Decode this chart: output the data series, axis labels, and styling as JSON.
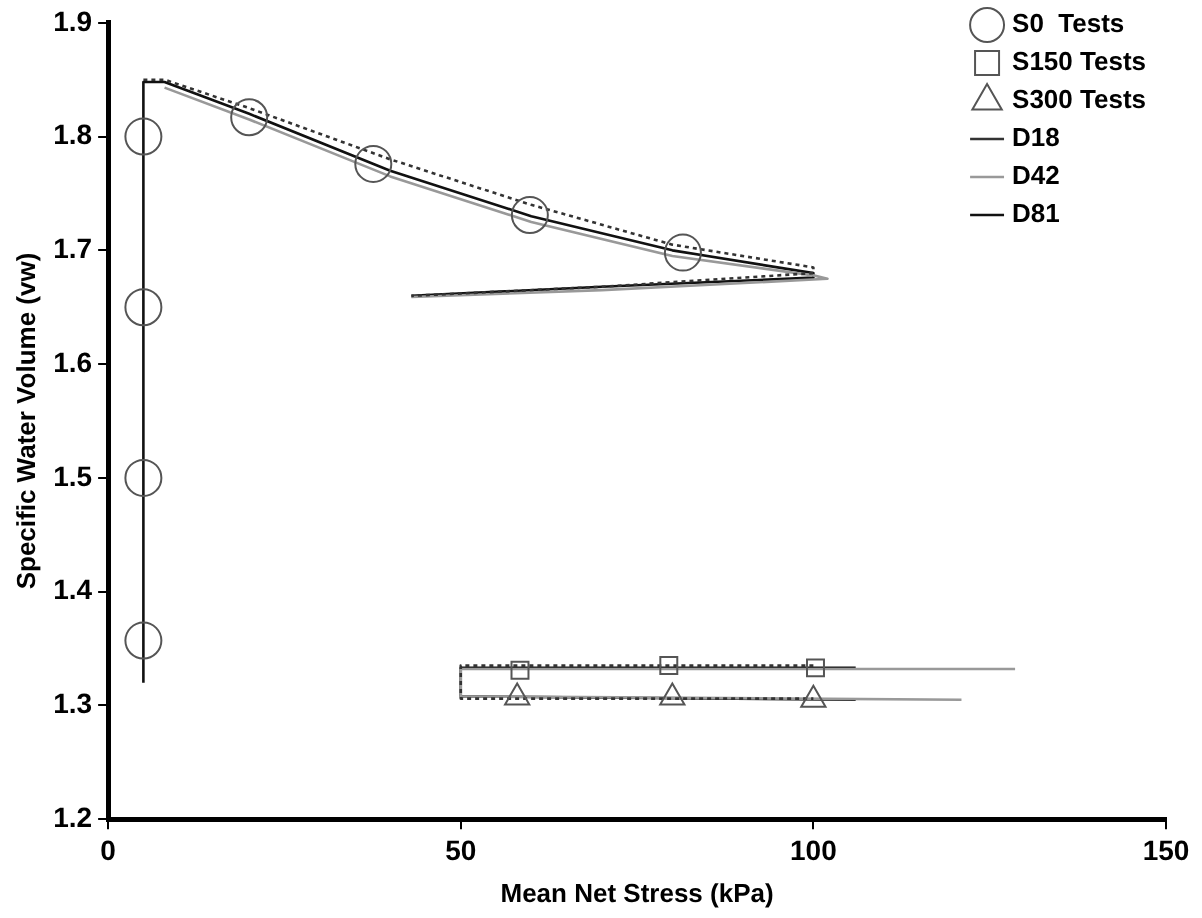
{
  "chart_data": {
    "type": "line",
    "xlabel": "Mean Net Stress (kPa)",
    "ylabel": "Specific Water Volume (vw)",
    "xlim": [
      0,
      150
    ],
    "xticks": [
      0,
      50,
      100,
      150
    ],
    "ylim": [
      1.2,
      1.9
    ],
    "yticks": [
      1.2,
      1.3,
      1.4,
      1.5,
      1.6,
      1.7,
      1.8,
      1.9
    ],
    "grid": false,
    "legend": "top right",
    "series": [
      {
        "name": "S0  Tests",
        "type": "scatter",
        "marker": "circle",
        "color": "#555555",
        "x": [
          5,
          5,
          5,
          5,
          20,
          37.6,
          59.8,
          81.5
        ],
        "values": [
          1.8,
          1.65,
          1.5,
          1.357,
          1.817,
          1.776,
          1.731,
          1.698
        ]
      },
      {
        "name": "S150 Tests",
        "type": "scatter",
        "marker": "square",
        "color": "#555555",
        "x": [
          58.4,
          79.5,
          100.3
        ],
        "values": [
          1.331,
          1.335,
          1.333
        ]
      },
      {
        "name": "S300 Tests",
        "type": "scatter",
        "marker": "triangle",
        "color": "#555555",
        "x": [
          58,
          80,
          100
        ],
        "values": [
          1.307,
          1.307,
          1.305
        ]
      },
      {
        "name": "D18",
        "type": "line",
        "line_style": "dotted",
        "color": "#333333",
        "x": [
          5,
          8,
          20,
          40,
          60,
          80,
          100,
          100,
          70,
          43,
          null,
          100,
          50,
          50,
          100
        ],
        "values": [
          1.85,
          1.85,
          1.825,
          1.78,
          1.74,
          1.705,
          1.685,
          1.68,
          1.668,
          1.66,
          null,
          1.335,
          1.335,
          1.306,
          1.306
        ]
      },
      {
        "name": "D42",
        "type": "line",
        "line_style": "solid",
        "color": "#999999",
        "x": [
          8,
          20,
          40,
          60,
          80,
          100,
          102,
          70,
          43,
          null,
          128.6,
          50,
          50,
          121
        ],
        "values": [
          1.843,
          1.815,
          1.765,
          1.725,
          1.695,
          1.678,
          1.675,
          1.665,
          1.659,
          null,
          1.332,
          1.332,
          1.308,
          1.305
        ]
      },
      {
        "name": "D81",
        "type": "line",
        "line_style": "solid",
        "color": "#111111",
        "x": [
          5,
          5,
          8,
          20,
          40,
          60,
          80,
          100,
          100,
          70,
          43,
          null,
          106,
          50,
          50,
          106
        ],
        "values": [
          1.32,
          1.848,
          1.848,
          1.82,
          1.77,
          1.73,
          1.7,
          1.68,
          1.676,
          1.668,
          1.66,
          null,
          1.333,
          1.333,
          1.308,
          1.305
        ]
      }
    ]
  }
}
